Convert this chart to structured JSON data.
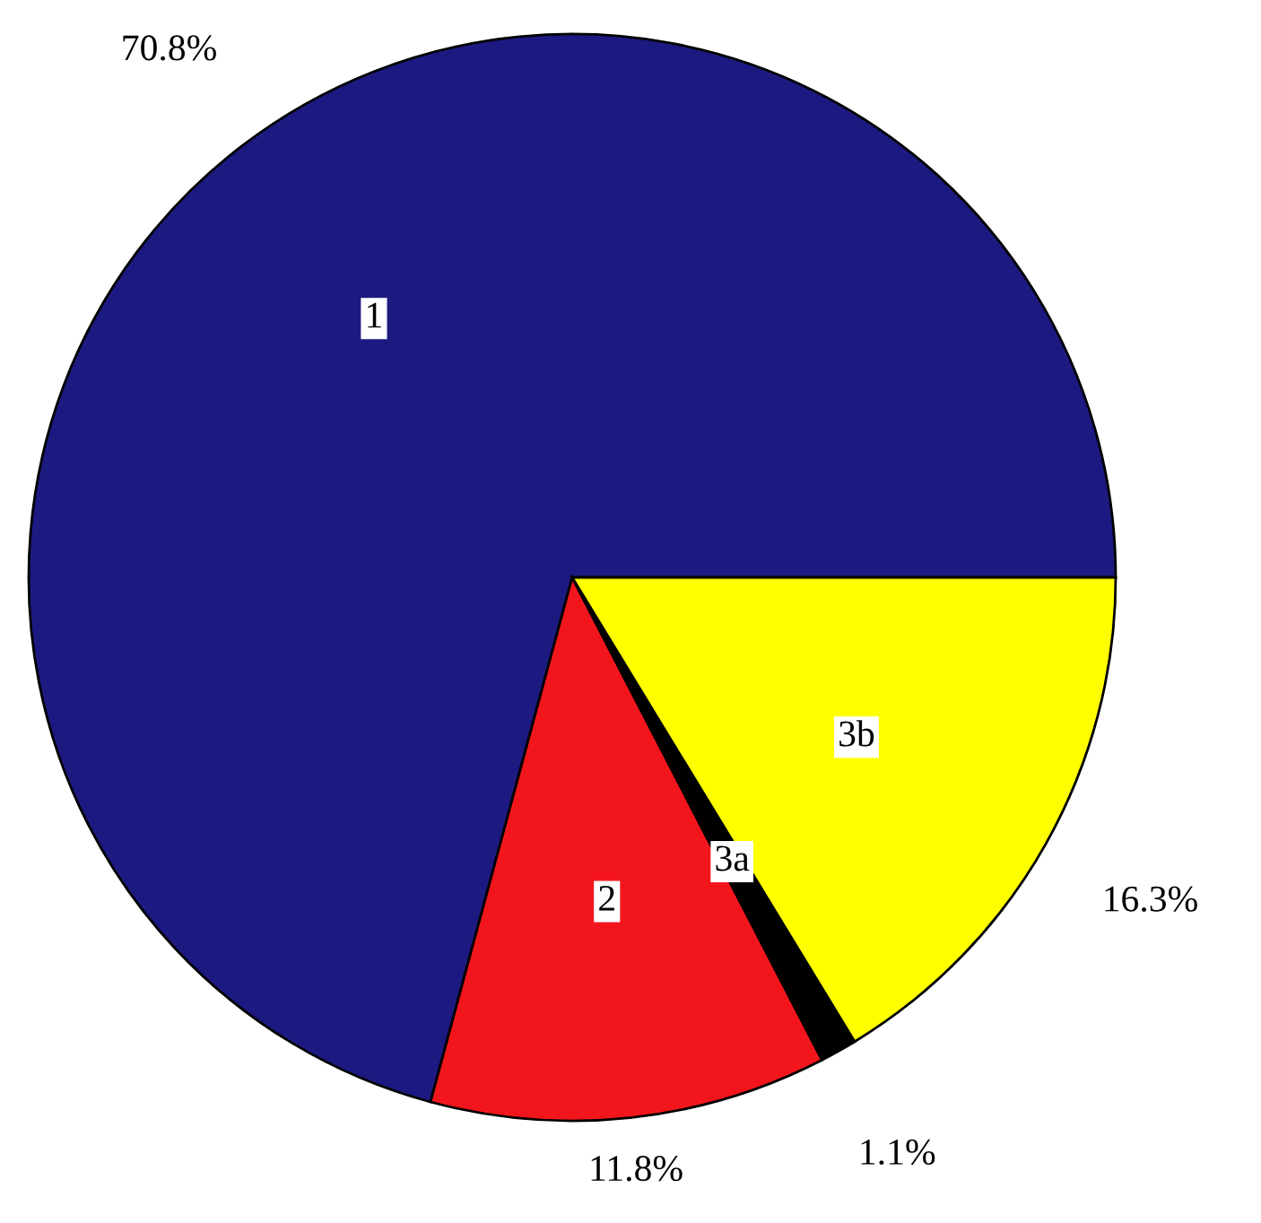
{
  "chart_data": {
    "type": "pie",
    "categories": [
      "1",
      "2",
      "3a",
      "3b"
    ],
    "values": [
      70.8,
      11.8,
      1.1,
      16.3
    ],
    "colors": [
      "#1c1a80",
      "#f2161c",
      "#000000",
      "#ffff00"
    ],
    "value_labels": [
      "70.8%",
      "11.8%",
      "1.1%",
      "16.3%"
    ]
  }
}
